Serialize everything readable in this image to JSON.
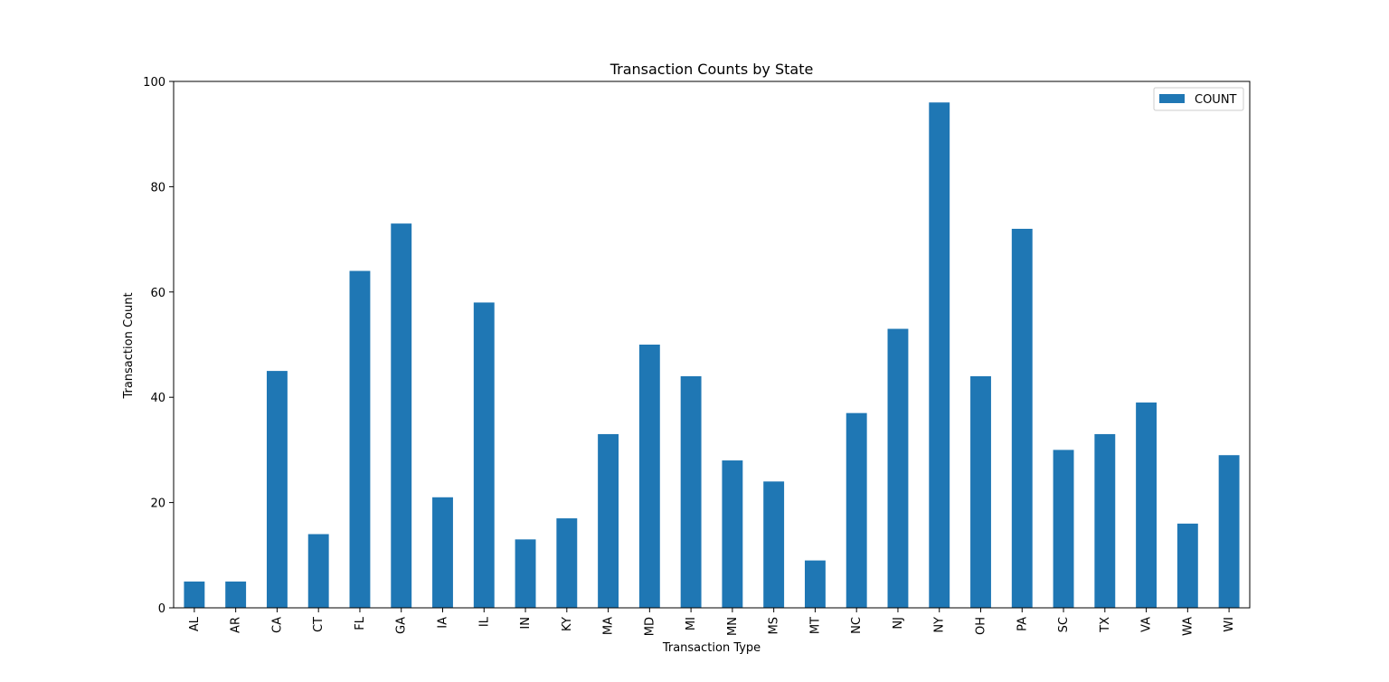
{
  "chart_data": {
    "type": "bar",
    "title": "Transaction Counts by State",
    "xlabel": "Transaction Type",
    "ylabel": "Transaction Count",
    "categories": [
      "AL",
      "AR",
      "CA",
      "CT",
      "FL",
      "GA",
      "IA",
      "IL",
      "IN",
      "KY",
      "MA",
      "MD",
      "MI",
      "MN",
      "MS",
      "MT",
      "NC",
      "NJ",
      "NY",
      "OH",
      "PA",
      "SC",
      "TX",
      "VA",
      "WA",
      "WI"
    ],
    "series": [
      {
        "name": "COUNT",
        "color": "#1f77b4",
        "values": [
          5,
          5,
          45,
          14,
          64,
          73,
          21,
          58,
          13,
          17,
          33,
          50,
          44,
          28,
          24,
          9,
          37,
          53,
          96,
          44,
          72,
          30,
          33,
          39,
          16,
          29
        ]
      }
    ],
    "ylim": [
      0,
      100
    ],
    "yticks": [
      0,
      20,
      40,
      60,
      80,
      100
    ],
    "grid": false,
    "legend": "top-right"
  }
}
